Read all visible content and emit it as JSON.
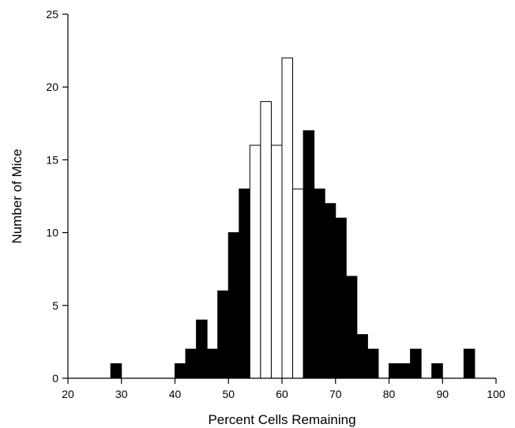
{
  "chart_data": {
    "type": "bar",
    "title": "",
    "xlabel": "Percent Cells Remaining",
    "ylabel": "Number of Mice",
    "xlim": [
      20,
      100
    ],
    "ylim": [
      0,
      25
    ],
    "xticks": [
      20,
      30,
      40,
      50,
      60,
      70,
      80,
      90,
      100
    ],
    "yticks": [
      0,
      5,
      10,
      15,
      20,
      25
    ],
    "grid": false,
    "legend": "none",
    "bin_width": 2,
    "colors": {
      "filled": "#000000",
      "open": "#ffffff",
      "axis": "#000000"
    },
    "bins": [
      {
        "x": 29,
        "value": 1,
        "fill": "filled"
      },
      {
        "x": 41,
        "value": 1,
        "fill": "filled"
      },
      {
        "x": 43,
        "value": 2,
        "fill": "filled"
      },
      {
        "x": 45,
        "value": 4,
        "fill": "filled"
      },
      {
        "x": 47,
        "value": 2,
        "fill": "filled"
      },
      {
        "x": 49,
        "value": 6,
        "fill": "filled"
      },
      {
        "x": 51,
        "value": 10,
        "fill": "filled"
      },
      {
        "x": 53,
        "value": 13,
        "fill": "filled"
      },
      {
        "x": 55,
        "value": 16,
        "fill": "open"
      },
      {
        "x": 57,
        "value": 19,
        "fill": "open"
      },
      {
        "x": 59,
        "value": 16,
        "fill": "open"
      },
      {
        "x": 61,
        "value": 22,
        "fill": "open"
      },
      {
        "x": 63,
        "value": 13,
        "fill": "open"
      },
      {
        "x": 65,
        "value": 17,
        "fill": "filled"
      },
      {
        "x": 67,
        "value": 13,
        "fill": "filled"
      },
      {
        "x": 69,
        "value": 12,
        "fill": "filled"
      },
      {
        "x": 71,
        "value": 11,
        "fill": "filled"
      },
      {
        "x": 73,
        "value": 7,
        "fill": "filled"
      },
      {
        "x": 75,
        "value": 3,
        "fill": "filled"
      },
      {
        "x": 77,
        "value": 2,
        "fill": "filled"
      },
      {
        "x": 81,
        "value": 1,
        "fill": "filled"
      },
      {
        "x": 83,
        "value": 1,
        "fill": "filled"
      },
      {
        "x": 85,
        "value": 2,
        "fill": "filled"
      },
      {
        "x": 89,
        "value": 1,
        "fill": "filled"
      },
      {
        "x": 95,
        "value": 2,
        "fill": "filled"
      }
    ]
  }
}
